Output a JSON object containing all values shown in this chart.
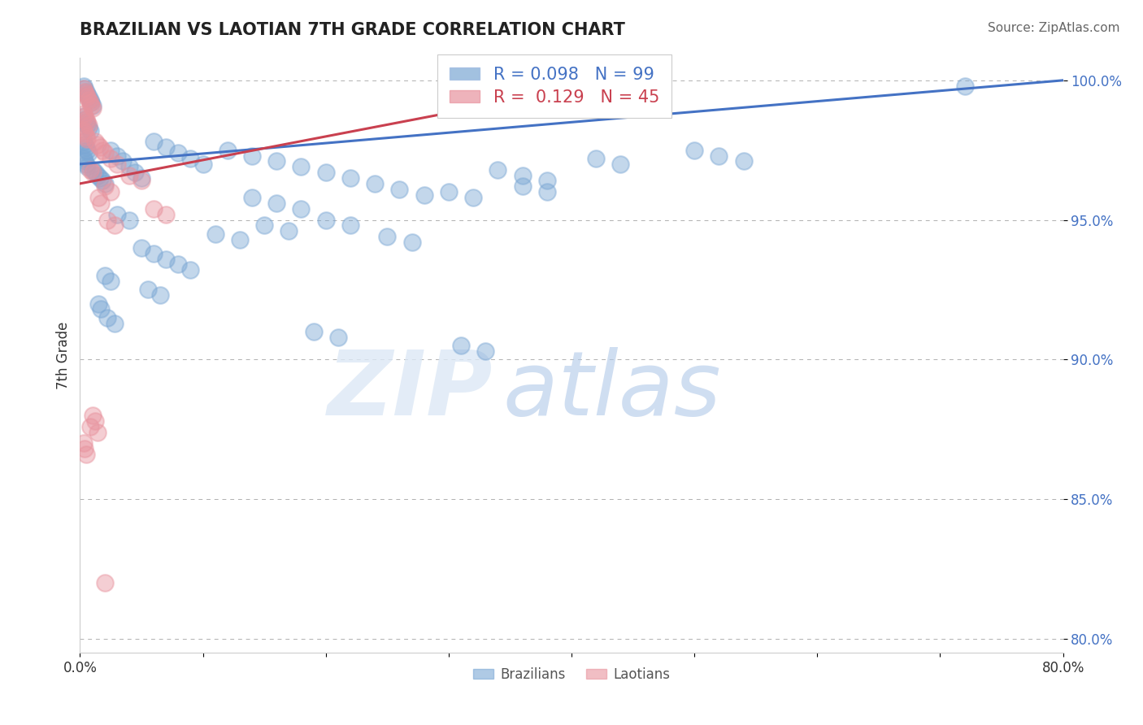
{
  "title": "BRAZILIAN VS LAOTIAN 7TH GRADE CORRELATION CHART",
  "source": "Source: ZipAtlas.com",
  "ylabel": "7th Grade",
  "xlim": [
    0.0,
    0.8
  ],
  "ylim": [
    0.795,
    1.008
  ],
  "yticks": [
    0.8,
    0.85,
    0.9,
    0.95,
    1.0
  ],
  "ytick_labels": [
    "80.0%",
    "85.0%",
    "90.0%",
    "95.0%",
    "100.0%"
  ],
  "xtick_labels": [
    "0.0%",
    "",
    "",
    "",
    "",
    "",
    "",
    "",
    "80.0%"
  ],
  "blue_R": "0.098",
  "blue_N": "99",
  "pink_R": "0.129",
  "pink_N": "45",
  "blue_color": "#7ba7d4",
  "pink_color": "#e8939e",
  "blue_line_color": "#4472c4",
  "pink_line_color": "#c9404f",
  "blue_line_x0": 0.0,
  "blue_line_y0": 0.97,
  "blue_line_x1": 0.8,
  "blue_line_y1": 1.0,
  "pink_line_x0": 0.0,
  "pink_line_y0": 0.963,
  "pink_line_x1": 0.45,
  "pink_line_y1": 1.001,
  "blue_pts_x": [
    0.003,
    0.004,
    0.005,
    0.006,
    0.007,
    0.008,
    0.009,
    0.01,
    0.003,
    0.004,
    0.005,
    0.006,
    0.007,
    0.008,
    0.003,
    0.004,
    0.005,
    0.006,
    0.007,
    0.003,
    0.004,
    0.005,
    0.006,
    0.01,
    0.012,
    0.014,
    0.016,
    0.018,
    0.02,
    0.025,
    0.03,
    0.035,
    0.04,
    0.045,
    0.05,
    0.06,
    0.07,
    0.08,
    0.09,
    0.1,
    0.12,
    0.14,
    0.16,
    0.18,
    0.2,
    0.22,
    0.24,
    0.26,
    0.28,
    0.14,
    0.16,
    0.18,
    0.3,
    0.32,
    0.42,
    0.44,
    0.34,
    0.36,
    0.38,
    0.2,
    0.22,
    0.11,
    0.13,
    0.05,
    0.06,
    0.07,
    0.08,
    0.09,
    0.36,
    0.38,
    0.5,
    0.52,
    0.54,
    0.72,
    0.03,
    0.04,
    0.15,
    0.17,
    0.25,
    0.27,
    0.02,
    0.025,
    0.055,
    0.065,
    0.015,
    0.017,
    0.022,
    0.028,
    0.19,
    0.21,
    0.31,
    0.33
  ],
  "blue_pts_y": [
    0.998,
    0.997,
    0.996,
    0.995,
    0.994,
    0.993,
    0.992,
    0.991,
    0.987,
    0.986,
    0.985,
    0.984,
    0.983,
    0.982,
    0.978,
    0.977,
    0.976,
    0.975,
    0.974,
    0.972,
    0.971,
    0.97,
    0.969,
    0.968,
    0.967,
    0.966,
    0.965,
    0.964,
    0.963,
    0.975,
    0.973,
    0.971,
    0.969,
    0.967,
    0.965,
    0.978,
    0.976,
    0.974,
    0.972,
    0.97,
    0.975,
    0.973,
    0.971,
    0.969,
    0.967,
    0.965,
    0.963,
    0.961,
    0.959,
    0.958,
    0.956,
    0.954,
    0.96,
    0.958,
    0.972,
    0.97,
    0.968,
    0.966,
    0.964,
    0.95,
    0.948,
    0.945,
    0.943,
    0.94,
    0.938,
    0.936,
    0.934,
    0.932,
    0.962,
    0.96,
    0.975,
    0.973,
    0.971,
    0.998,
    0.952,
    0.95,
    0.948,
    0.946,
    0.944,
    0.942,
    0.93,
    0.928,
    0.925,
    0.923,
    0.92,
    0.918,
    0.915,
    0.913,
    0.91,
    0.908,
    0.905,
    0.903
  ],
  "pink_pts_x": [
    0.003,
    0.004,
    0.005,
    0.006,
    0.007,
    0.008,
    0.009,
    0.01,
    0.003,
    0.004,
    0.005,
    0.006,
    0.007,
    0.003,
    0.004,
    0.005,
    0.006,
    0.012,
    0.014,
    0.016,
    0.018,
    0.02,
    0.025,
    0.03,
    0.008,
    0.01,
    0.04,
    0.05,
    0.02,
    0.025,
    0.015,
    0.017,
    0.06,
    0.07,
    0.022,
    0.028,
    0.01,
    0.012,
    0.008,
    0.014,
    0.003,
    0.004,
    0.005,
    0.02
  ],
  "pink_pts_y": [
    0.997,
    0.996,
    0.995,
    0.994,
    0.993,
    0.992,
    0.991,
    0.99,
    0.988,
    0.987,
    0.986,
    0.985,
    0.984,
    0.982,
    0.981,
    0.98,
    0.979,
    0.978,
    0.977,
    0.976,
    0.975,
    0.974,
    0.972,
    0.97,
    0.968,
    0.967,
    0.966,
    0.964,
    0.962,
    0.96,
    0.958,
    0.956,
    0.954,
    0.952,
    0.95,
    0.948,
    0.88,
    0.878,
    0.876,
    0.874,
    0.87,
    0.868,
    0.866,
    0.82
  ],
  "watermark_zip": "ZIP",
  "watermark_atlas": "atlas",
  "legend_label_blue": "R = 0.098   N = 99",
  "legend_label_pink": "R =  0.129   N = 45"
}
